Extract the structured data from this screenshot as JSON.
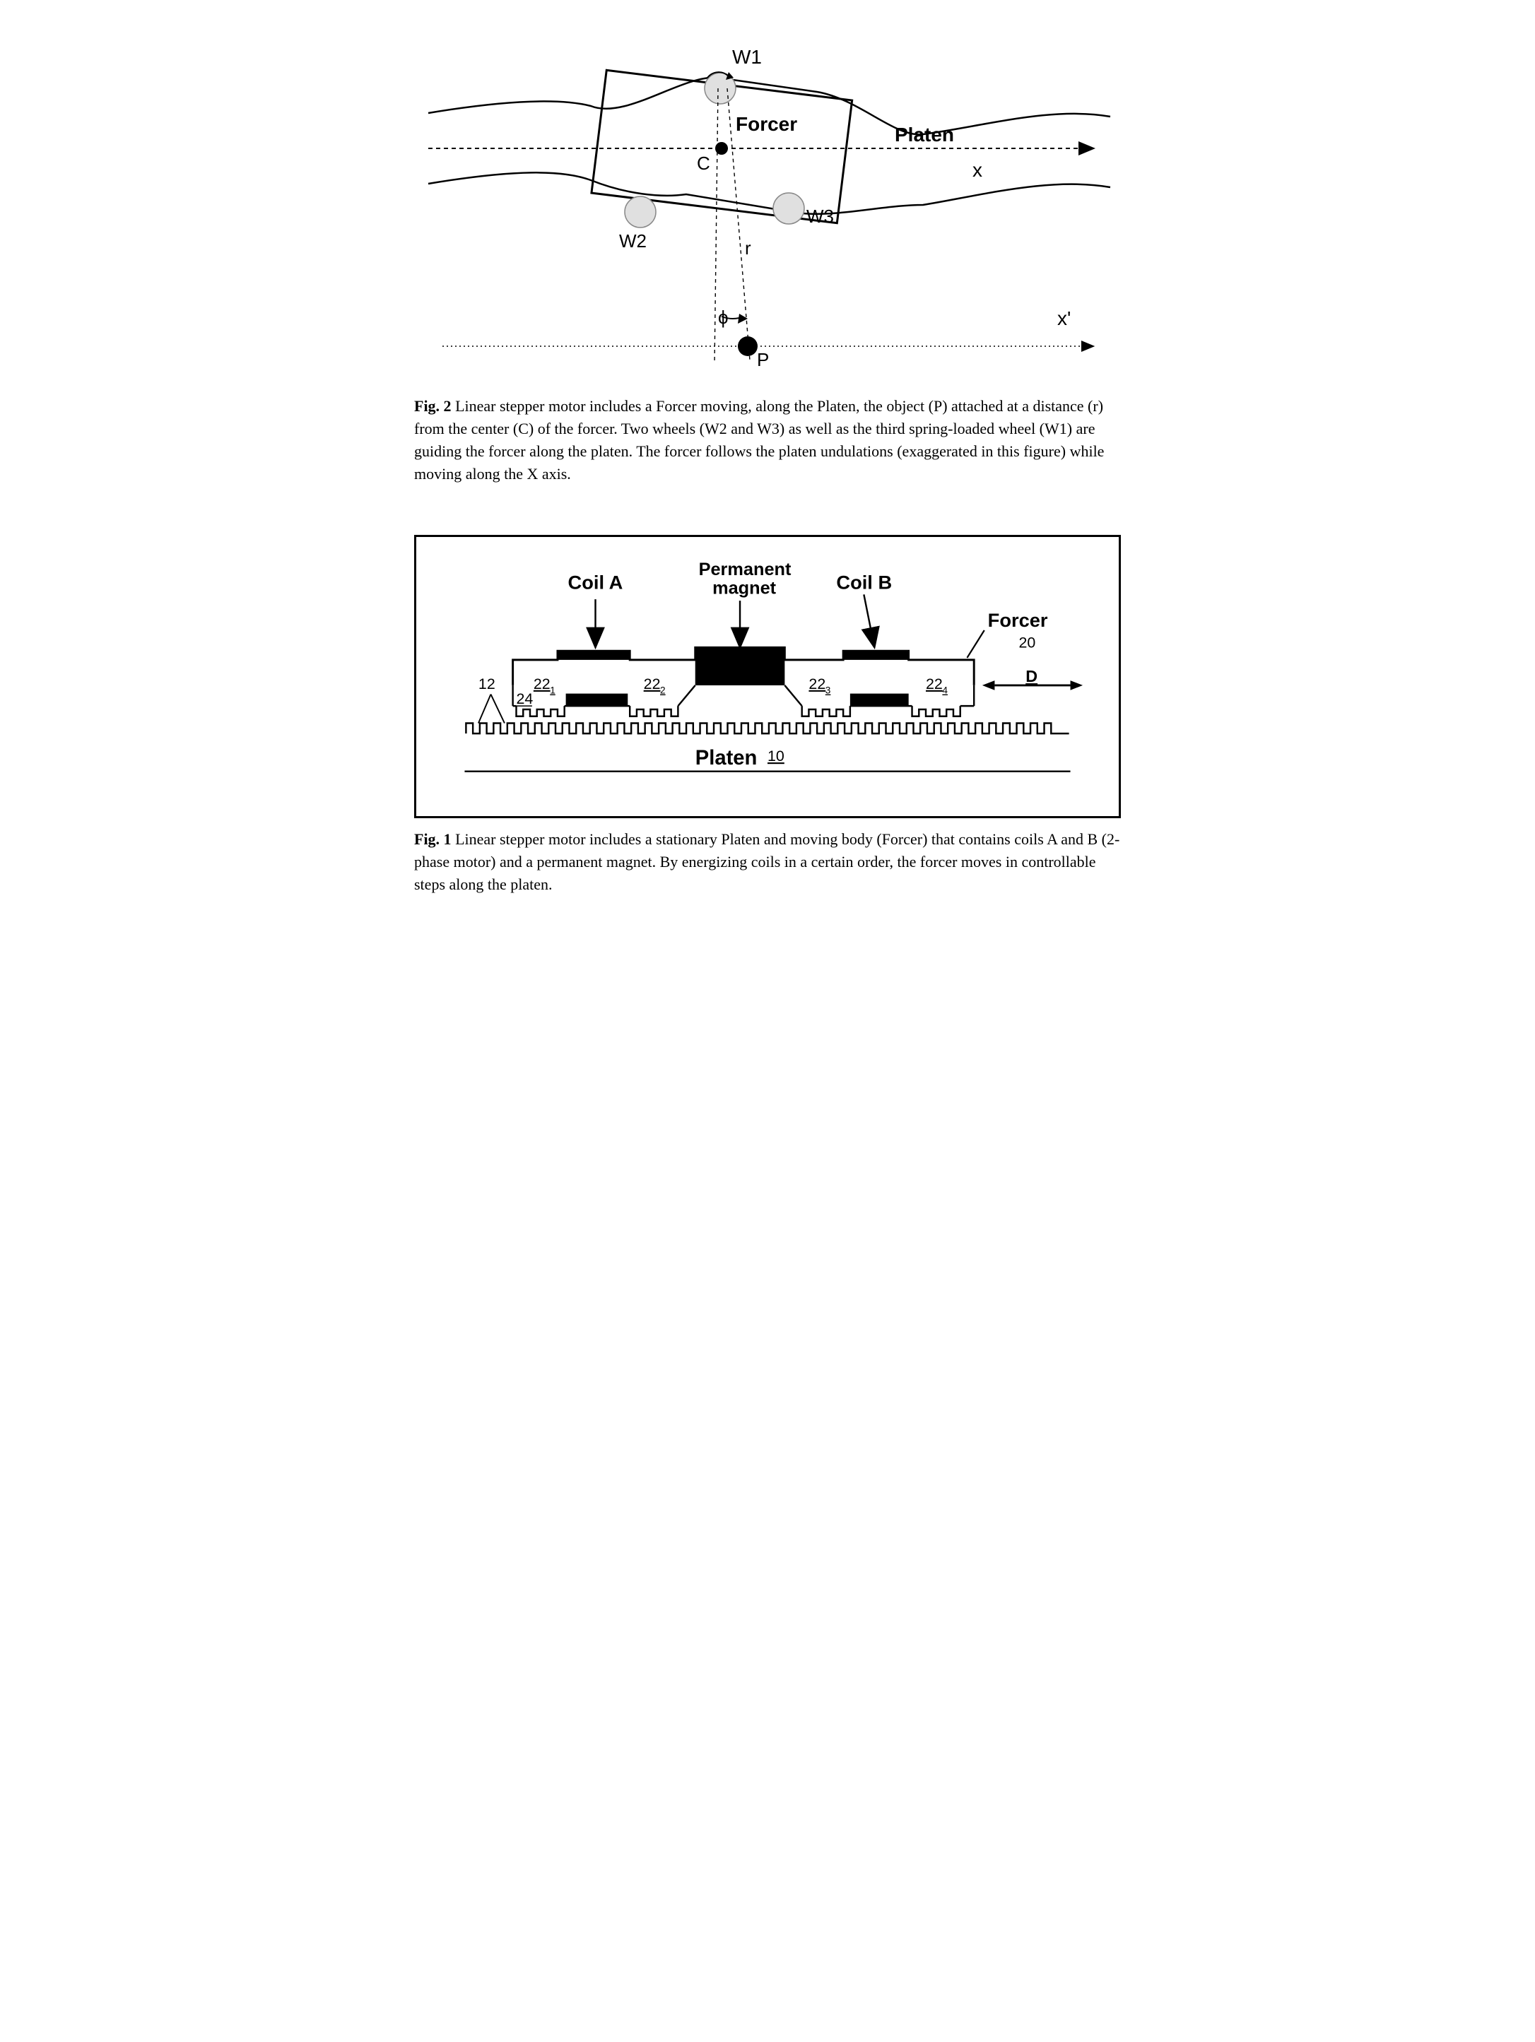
{
  "fig2": {
    "labels": {
      "W1": "W1",
      "W2": "W2",
      "W3": "W3",
      "Forcer": "Forcer",
      "Platen": "Platen",
      "C": "C",
      "r": "r",
      "phi": "ϕ",
      "P": "P",
      "x": "x",
      "xprime": "x'"
    },
    "caption_bold": "Fig. 2",
    "caption_text": " Linear stepper motor includes a Forcer moving, along the Platen, the object (P) attached at a distance (r) from the center (C) of the forcer. Two wheels (W2 and W3) as well as the third spring-loaded wheel (W1) are guiding the forcer along the platen.  The forcer follows the platen undulations (exaggerated in this figure) while moving along the X axis.",
    "colors": {
      "wheel_fill": "#e0e0e0",
      "black": "#000000",
      "solid_dot": "#000000"
    },
    "stroke_width": 2.5,
    "font_family": "Arial, Helvetica, sans-serif",
    "label_fontsize_bold": 28,
    "label_fontsize_normal": 26
  },
  "fig1": {
    "labels": {
      "CoilA": "Coil A",
      "CoilB": "Coil B",
      "PermMag": "Permanent",
      "PermMag2": "magnet",
      "Forcer": "Forcer",
      "Platen": "Platen",
      "D": "D",
      "n20": "20",
      "n10": "10",
      "n12": "12",
      "n24": "24",
      "n221": "22",
      "n221s": "1",
      "n222": "22",
      "n222s": "2",
      "n223": "22",
      "n223s": "3",
      "n224": "22",
      "n224s": "4"
    },
    "caption_bold": "Fig. 1",
    "caption_text": " Linear stepper motor includes a stationary Platen and moving body (Forcer) that contains coils A and B (2-phase motor) and a permanent magnet. By energizing coils in a certain order, the forcer moves in controllable steps along the platen.",
    "colors": {
      "black": "#000000",
      "fill_solid": "#000000"
    },
    "stroke_width": 2.5,
    "font_family": "Arial, Helvetica, sans-serif",
    "label_fontsize_bold": 26,
    "label_fontsize_normal": 22
  }
}
